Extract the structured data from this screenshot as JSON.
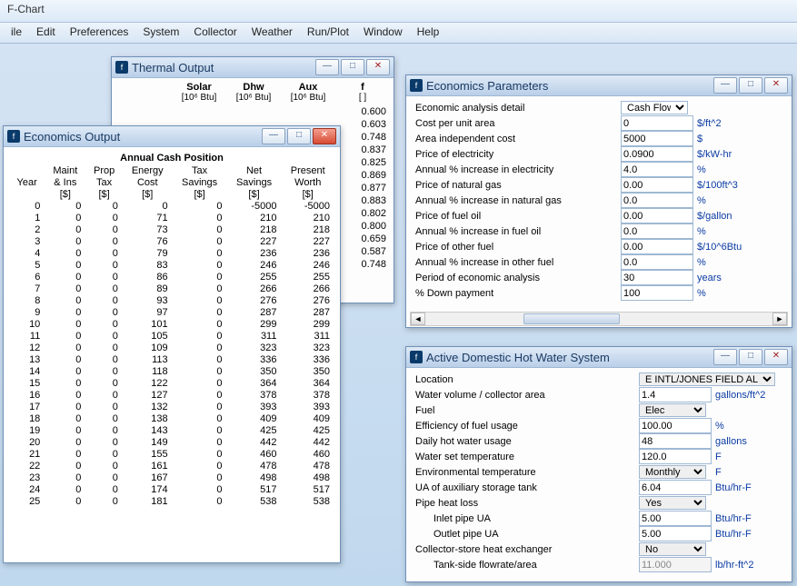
{
  "app_title": "F-Chart",
  "menu": [
    "ile",
    "Edit",
    "Preferences",
    "System",
    "Collector",
    "Weather",
    "Run/Plot",
    "Window",
    "Help"
  ],
  "thermal": {
    "title": "Thermal Output",
    "cols": [
      "Solar",
      "Dhw",
      "Aux",
      "f"
    ],
    "units": [
      "[10⁶ Btu]",
      "[10⁶ Btu]",
      "[10⁶ Btu]",
      "[ ]"
    ],
    "f_values": [
      "0.600",
      "0.603",
      "0.748",
      "0.837",
      "0.825",
      "0.869",
      "0.877",
      "0.883",
      "0.802",
      "0.800",
      "0.659",
      "0.587",
      "0.748"
    ]
  },
  "econ_out": {
    "title": "Economics Output",
    "caption": "Annual Cash Position",
    "head1": [
      "",
      "Maint",
      "Prop",
      "Energy",
      "Tax",
      "Net",
      "Present"
    ],
    "head2": [
      "Year",
      "& Ins",
      "Tax",
      "Cost",
      "Savings",
      "Savings",
      "Worth"
    ],
    "head3": [
      "",
      "[$]",
      "[$]",
      "[$]",
      "[$]",
      "[$]",
      "[$]"
    ],
    "rows": [
      [
        0,
        0,
        0,
        0,
        0,
        -5000,
        -5000
      ],
      [
        1,
        0,
        0,
        71,
        0,
        210,
        210
      ],
      [
        2,
        0,
        0,
        73,
        0,
        218,
        218
      ],
      [
        3,
        0,
        0,
        76,
        0,
        227,
        227
      ],
      [
        4,
        0,
        0,
        79,
        0,
        236,
        236
      ],
      [
        5,
        0,
        0,
        83,
        0,
        246,
        246
      ],
      [
        6,
        0,
        0,
        86,
        0,
        255,
        255
      ],
      [
        7,
        0,
        0,
        89,
        0,
        266,
        266
      ],
      [
        8,
        0,
        0,
        93,
        0,
        276,
        276
      ],
      [
        9,
        0,
        0,
        97,
        0,
        287,
        287
      ],
      [
        10,
        0,
        0,
        101,
        0,
        299,
        299
      ],
      [
        11,
        0,
        0,
        105,
        0,
        311,
        311
      ],
      [
        12,
        0,
        0,
        109,
        0,
        323,
        323
      ],
      [
        13,
        0,
        0,
        113,
        0,
        336,
        336
      ],
      [
        14,
        0,
        0,
        118,
        0,
        350,
        350
      ],
      [
        15,
        0,
        0,
        122,
        0,
        364,
        364
      ],
      [
        16,
        0,
        0,
        127,
        0,
        378,
        378
      ],
      [
        17,
        0,
        0,
        132,
        0,
        393,
        393
      ],
      [
        18,
        0,
        0,
        138,
        0,
        409,
        409
      ],
      [
        19,
        0,
        0,
        143,
        0,
        425,
        425
      ],
      [
        20,
        0,
        0,
        149,
        0,
        442,
        442
      ],
      [
        21,
        0,
        0,
        155,
        0,
        460,
        460
      ],
      [
        22,
        0,
        0,
        161,
        0,
        478,
        478
      ],
      [
        23,
        0,
        0,
        167,
        0,
        498,
        498
      ],
      [
        24,
        0,
        0,
        174,
        0,
        517,
        517
      ],
      [
        25,
        0,
        0,
        181,
        0,
        538,
        538
      ]
    ]
  },
  "params": {
    "title": "Economics Parameters",
    "rows": [
      {
        "label": "Economic analysis detail",
        "value": "Cash Flow",
        "unit": "",
        "type": "select"
      },
      {
        "label": "Cost per unit area",
        "value": "0",
        "unit": "$/ft^2"
      },
      {
        "label": "Area independent cost",
        "value": "5000",
        "unit": "$"
      },
      {
        "label": "Price of electricity",
        "value": "0.0900",
        "unit": "$/kW-hr"
      },
      {
        "label": "Annual % increase in electricity",
        "value": "4.0",
        "unit": "%"
      },
      {
        "label": "Price of natural gas",
        "value": "0.00",
        "unit": "$/100ft^3"
      },
      {
        "label": "Annual % increase in natural gas",
        "value": "0.0",
        "unit": "%"
      },
      {
        "label": "Price of fuel oil",
        "value": "0.00",
        "unit": "$/gallon"
      },
      {
        "label": "Annual % increase in fuel oil",
        "value": "0.0",
        "unit": "%"
      },
      {
        "label": "Price of other fuel",
        "value": "0.00",
        "unit": "$/10^6Btu"
      },
      {
        "label": "Annual % increase in other fuel",
        "value": "0.0",
        "unit": "%"
      },
      {
        "label": "Period of economic analysis",
        "value": "30",
        "unit": "years"
      },
      {
        "label": "% Down payment",
        "value": "100",
        "unit": "%"
      }
    ]
  },
  "dhw": {
    "title": "Active Domestic Hot Water System",
    "rows": [
      {
        "label": "Location",
        "value": "E INTL/JONES FIELD AL",
        "unit": "",
        "wide": true,
        "type": "select"
      },
      {
        "label": "Water volume / collector area",
        "value": "1.4",
        "unit": "gallons/ft^2"
      },
      {
        "label": "Fuel",
        "value": "Elec",
        "unit": "",
        "type": "select"
      },
      {
        "label": "Efficiency of fuel usage",
        "value": "100.00",
        "unit": "%"
      },
      {
        "label": "Daily hot water usage",
        "value": "48",
        "unit": "gallons"
      },
      {
        "label": "Water set temperature",
        "value": "120.0",
        "unit": "F"
      },
      {
        "label": "Environmental temperature",
        "value": "Monthly",
        "unit": "F",
        "type": "select"
      },
      {
        "label": "UA of auxiliary storage tank",
        "value": "6.04",
        "unit": "Btu/hr-F"
      },
      {
        "label": "Pipe heat loss",
        "value": "Yes",
        "unit": "",
        "type": "select"
      },
      {
        "label": "Inlet pipe UA",
        "value": "5.00",
        "unit": "Btu/hr-F",
        "indent": true
      },
      {
        "label": "Outlet pipe UA",
        "value": "5.00",
        "unit": "Btu/hr-F",
        "indent": true
      },
      {
        "label": "Collector-store heat exchanger",
        "value": "No",
        "unit": "",
        "type": "select"
      },
      {
        "label": "Tank-side flowrate/area",
        "value": "11.000",
        "unit": "lb/hr-ft^2",
        "indent": true,
        "disabled": true
      }
    ]
  }
}
